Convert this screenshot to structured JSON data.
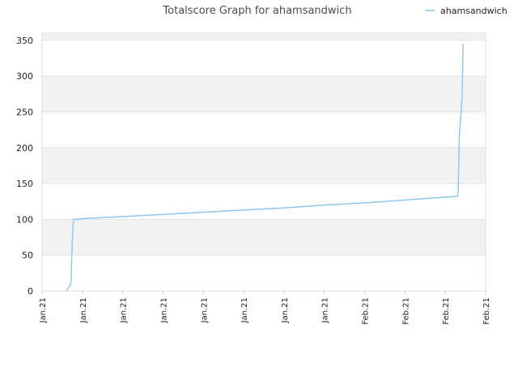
{
  "chart_data": {
    "type": "line",
    "title": "Totalscore Graph for ahamsandwich",
    "xlabel": "",
    "ylabel": "",
    "ylim": [
      0,
      360
    ],
    "xlim": [
      0,
      11
    ],
    "grid": true,
    "legend": "top-right",
    "y_ticks": [
      0,
      50,
      100,
      150,
      200,
      250,
      300,
      350
    ],
    "x_ticks": [
      {
        "x": 0,
        "label": "Jan.21"
      },
      {
        "x": 1,
        "label": "Jan.21"
      },
      {
        "x": 2,
        "label": "Jan.21"
      },
      {
        "x": 3,
        "label": "Jan.21"
      },
      {
        "x": 4,
        "label": "Jan.21"
      },
      {
        "x": 5,
        "label": "Jan.21"
      },
      {
        "x": 6,
        "label": "Jan.21"
      },
      {
        "x": 7,
        "label": "Jan.21"
      },
      {
        "x": 8,
        "label": "Feb.21"
      },
      {
        "x": 9,
        "label": "Feb.21"
      },
      {
        "x": 10,
        "label": "Feb.21"
      },
      {
        "x": 11,
        "label": "Feb.21"
      }
    ],
    "series": [
      {
        "name": "ahamsandwich",
        "color": "#8ec8f0",
        "x": [
          0.6,
          0.7,
          0.72,
          0.74,
          0.76,
          0.78,
          0.8,
          1.0,
          2.0,
          3.0,
          4.0,
          5.0,
          6.0,
          7.0,
          8.0,
          9.0,
          10.0,
          10.3,
          10.32,
          10.35,
          10.38,
          10.42,
          10.44
        ],
        "y": [
          0,
          8,
          15,
          55,
          85,
          100,
          100,
          101,
          104,
          107,
          110,
          113,
          116,
          120,
          123,
          127,
          131,
          132,
          140,
          220,
          240,
          275,
          345
        ]
      }
    ]
  }
}
